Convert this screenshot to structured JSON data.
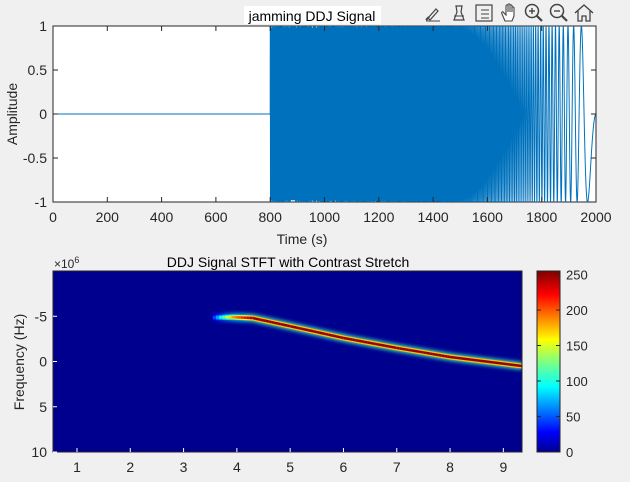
{
  "toolbar": {
    "icons": [
      "brush-icon",
      "data-tips-icon",
      "restore-view-icon",
      "pan-icon",
      "zoom-in-icon",
      "zoom-out-icon",
      "home-icon"
    ]
  },
  "chart_data": [
    {
      "type": "line",
      "title": "jamming  DDJ Signal",
      "xlabel": "Time (s)",
      "ylabel": "Amplitude",
      "xlim": [
        0,
        2000
      ],
      "ylim": [
        -1,
        1
      ],
      "xticks": [
        "0",
        "200",
        "400",
        "600",
        "800",
        "1000",
        "1200",
        "1400",
        "1600",
        "1800",
        "2000"
      ],
      "yticks": [
        "1",
        "0.5",
        "0",
        "-0.5",
        "-1"
      ],
      "grid": false,
      "line_color": "#0072BD",
      "x": [
        0,
        800,
        810,
        1000,
        1200,
        1400,
        1600,
        1800,
        2000
      ],
      "y": [
        0,
        0,
        1,
        -1,
        1,
        -1,
        1,
        -1,
        1
      ],
      "signal": {
        "silent_until": 800,
        "end": 2000,
        "amplitude": 1,
        "chirp_cycles_per_unit_at_start": 0.62,
        "chirp_cycles_per_unit_at_end": 0.0
      }
    },
    {
      "type": "heatmap",
      "title": "DDJ Signal STFT with Contrast Stretch",
      "xlabel": "",
      "ylabel": "Frequency (Hz)",
      "exponent_label": "×10",
      "exponent_power": "6",
      "xlim": [
        0.55,
        9.35
      ],
      "ylim": [
        -10,
        10
      ],
      "xticks": [
        "1",
        "2",
        "3",
        "4",
        "5",
        "6",
        "7",
        "8",
        "9"
      ],
      "yticks": [
        "-5",
        "0",
        "5",
        "10"
      ],
      "ridge": [
        {
          "x": 3.55,
          "y": -4.85,
          "v": 40
        },
        {
          "x": 3.9,
          "y": -4.9,
          "v": 180
        },
        {
          "x": 4.3,
          "y": -4.8,
          "v": 250
        },
        {
          "x": 5,
          "y": -3.9,
          "v": 250
        },
        {
          "x": 6,
          "y": -2.6,
          "v": 250
        },
        {
          "x": 7,
          "y": -1.5,
          "v": 250
        },
        {
          "x": 8,
          "y": -0.5,
          "v": 250
        },
        {
          "x": 9.35,
          "y": 0.5,
          "v": 250
        }
      ],
      "background_value": 5,
      "colorbar": {
        "colormap": "jet",
        "range": [
          0,
          255
        ],
        "ticks": [
          "250",
          "200",
          "150",
          "100",
          "50",
          "0"
        ]
      }
    }
  ]
}
